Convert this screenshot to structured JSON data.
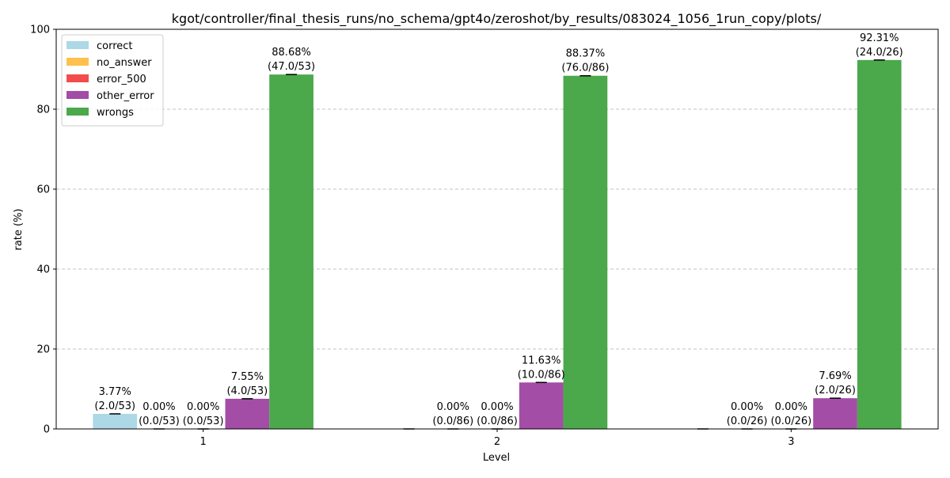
{
  "chart_data": {
    "type": "bar",
    "title": "kgot/controller/final_thesis_runs/no_schema/gpt4o/zeroshot/by_results/083024_1056_1run_copy/plots/",
    "xlabel": "Level",
    "ylabel": "rate (%)",
    "ylim": [
      0,
      100
    ],
    "yticks": [
      0,
      20,
      40,
      60,
      80,
      100
    ],
    "grid": "y-dashed",
    "legend_position": "top-left",
    "categories": [
      "1",
      "2",
      "3"
    ],
    "series": [
      {
        "name": "correct",
        "color": "#add8e6",
        "values": [
          3.77,
          0.0,
          0.0
        ],
        "labels": [
          [
            "3.77%",
            "(2.0/53)"
          ],
          [
            "",
            ""
          ],
          [
            "",
            ""
          ]
        ]
      },
      {
        "name": "no_answer",
        "color": "#ffc04d",
        "values": [
          0.0,
          0.0,
          0.0
        ],
        "labels": [
          [
            "0.00%",
            "(0.0/53)"
          ],
          [
            "0.00%",
            "(0.0/86)"
          ],
          [
            "0.00%",
            "(0.0/26)"
          ]
        ]
      },
      {
        "name": "error_500",
        "color": "#f34c4c",
        "values": [
          0.0,
          0.0,
          0.0
        ],
        "labels": [
          [
            "0.00%",
            "(0.0/53)"
          ],
          [
            "0.00%",
            "(0.0/86)"
          ],
          [
            "0.00%",
            "(0.0/26)"
          ]
        ]
      },
      {
        "name": "other_error",
        "color": "#a34da6",
        "values": [
          7.55,
          11.63,
          7.69
        ],
        "labels": [
          [
            "7.55%",
            "(4.0/53)"
          ],
          [
            "11.63%",
            "(10.0/86)"
          ],
          [
            "7.69%",
            "(2.0/26)"
          ]
        ]
      },
      {
        "name": "wrongs",
        "color": "#4ba84b",
        "values": [
          88.68,
          88.37,
          92.31
        ],
        "labels": [
          [
            "88.68%",
            "(47.0/53)"
          ],
          [
            "88.37%",
            "(76.0/86)"
          ],
          [
            "92.31%",
            "(24.0/26)"
          ]
        ]
      }
    ]
  }
}
